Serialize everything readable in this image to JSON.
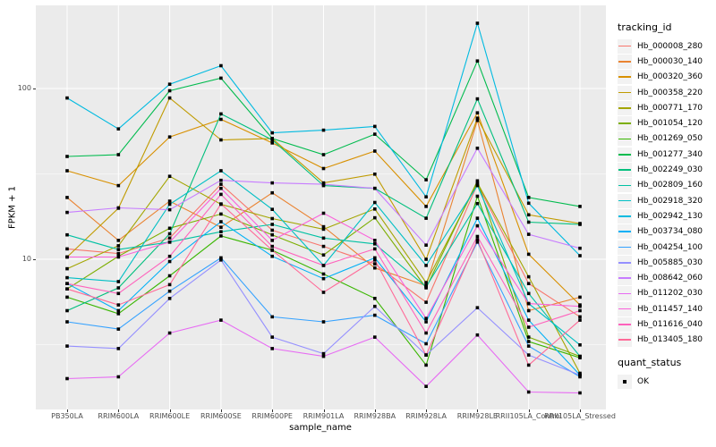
{
  "chart_data": {
    "type": "line",
    "xlabel": "sample_name",
    "ylabel": "FPKM + 1",
    "y_scale": "log10",
    "y_ticks": [
      10,
      100
    ],
    "y_tick_labels": [
      "10",
      "100"
    ],
    "y_minor_gridlines": [
      3.162,
      31.62
    ],
    "ylim": [
      1.3,
      290
    ],
    "grid": true,
    "legend_position": "right",
    "categories": [
      "PB350LA",
      "RRIM600LA",
      "RRIM600LE",
      "RRIM600SE",
      "RRIM600PE",
      "RRIM901LA",
      "RRIM928BA",
      "RRIM928LA",
      "RRIM928LE",
      "RRII105LA_Control",
      "RRII105LA_Stressed"
    ],
    "series": [
      {
        "name": "Hb_000008_280",
        "color": "#F8766D",
        "values": [
          11.5,
          10.8,
          13.3,
          27.5,
          14.8,
          11.9,
          9.4,
          5.6,
          27.5,
          7.2,
          4.6
        ]
      },
      {
        "name": "Hb_000030_140",
        "color": "#EA8331",
        "values": [
          23,
          12.9,
          21.9,
          15.4,
          24.5,
          15.5,
          8.9,
          7.0,
          65,
          5.0,
          6.0
        ]
      },
      {
        "name": "Hb_000320_360",
        "color": "#D89000",
        "values": [
          33,
          27,
          52,
          66,
          48,
          34,
          43,
          20.4,
          72,
          10.7,
          5.4
        ]
      },
      {
        "name": "Hb_000358_220",
        "color": "#C09B00",
        "values": [
          10.3,
          19.9,
          88,
          50,
          51,
          28,
          31.5,
          10.0,
          67,
          18.2,
          16.2
        ]
      },
      {
        "name": "Hb_000771_170",
        "color": "#A3A500",
        "values": [
          8.8,
          12.0,
          30.6,
          21,
          17.3,
          15.0,
          19.7,
          7.3,
          28.0,
          7.9,
          2.15
        ]
      },
      {
        "name": "Hb_001054_120",
        "color": "#7CAE00",
        "values": [
          6.7,
          10.4,
          15.2,
          18.4,
          13.9,
          10.6,
          17.5,
          6.8,
          28.8,
          3.5,
          2.7
        ]
      },
      {
        "name": "Hb_001269_050",
        "color": "#39B600",
        "values": [
          6.0,
          4.8,
          8.0,
          13.7,
          11.3,
          8.2,
          5.9,
          2.4,
          23.4,
          3.3,
          2.65
        ]
      },
      {
        "name": "Hb_001277_340",
        "color": "#00BB4E",
        "values": [
          40,
          41,
          97,
          115,
          51,
          41,
          54,
          29.2,
          145,
          23,
          20.4
        ]
      },
      {
        "name": "Hb_002249_030",
        "color": "#00BF7D",
        "values": [
          5.0,
          6.8,
          14.1,
          71,
          50,
          27,
          26,
          17.4,
          87,
          16.5,
          16.0
        ]
      },
      {
        "name": "Hb_002809_160",
        "color": "#00C1A3",
        "values": [
          13.9,
          11.4,
          12.6,
          14.5,
          16.0,
          13.3,
          12.3,
          6.9,
          21.2,
          6.3,
          2.7
        ]
      },
      {
        "name": "Hb_002918_320",
        "color": "#00BFC4",
        "values": [
          7.8,
          7.4,
          21.0,
          33,
          19.6,
          9.2,
          21.5,
          9.2,
          27.0,
          5.5,
          3.15
        ]
      },
      {
        "name": "Hb_002942_130",
        "color": "#00BAE0",
        "values": [
          88,
          58,
          106,
          136,
          55,
          57,
          60,
          23.2,
          241,
          21.3,
          10.5
        ]
      },
      {
        "name": "Hb_003734_080",
        "color": "#00B0F6",
        "values": [
          7.2,
          5.0,
          9.7,
          16.6,
          10.4,
          7.7,
          10.2,
          4.3,
          17.4,
          4.4,
          2.1
        ]
      },
      {
        "name": "Hb_004254_100",
        "color": "#35A2FF",
        "values": [
          4.3,
          3.9,
          6.5,
          10.2,
          4.6,
          4.3,
          4.7,
          3.2,
          12.6,
          3.1,
          2.05
        ]
      },
      {
        "name": "Hb_005885_030",
        "color": "#9590FF",
        "values": [
          3.1,
          3.0,
          5.9,
          9.9,
          3.5,
          2.8,
          5.3,
          2.75,
          5.2,
          2.75,
          2.1
        ]
      },
      {
        "name": "Hb_008642_060",
        "color": "#C77CFF",
        "values": [
          18.8,
          20,
          19.5,
          29,
          28,
          27.5,
          26,
          12.1,
          44.7,
          14.0,
          11.6
        ]
      },
      {
        "name": "Hb_011202_030",
        "color": "#E76BF3",
        "values": [
          2.0,
          2.05,
          3.7,
          4.4,
          3.0,
          2.7,
          3.5,
          1.8,
          3.6,
          1.67,
          1.65
        ]
      },
      {
        "name": "Hb_011457_140",
        "color": "#FA62DB",
        "values": [
          10.3,
          10.3,
          12.6,
          26,
          12.9,
          18.6,
          12.9,
          4.5,
          15.7,
          5.5,
          5.3
        ]
      },
      {
        "name": "Hb_011616_040",
        "color": "#FF62BC",
        "values": [
          7.2,
          6.3,
          10.4,
          24,
          11.9,
          9.2,
          11.5,
          3.7,
          13.6,
          4.0,
          5.0
        ]
      },
      {
        "name": "Hb_013405_180",
        "color": "#FF6A98",
        "values": [
          6.7,
          5.4,
          7.1,
          21.1,
          11.3,
          6.4,
          9.9,
          2.75,
          13.0,
          2.4,
          4.4
        ]
      }
    ],
    "legend": {
      "series_legend_title": "tracking_id",
      "quant_legend_title": "quant_status",
      "quant_ok_label": "OK"
    },
    "colors": {
      "panel_background": "#EBEBEB",
      "gridline": "#FFFFFF",
      "marker": "#000000",
      "tick_text": "#4D4D4D",
      "axis_text": "#000000"
    },
    "marker_shape": "square"
  }
}
